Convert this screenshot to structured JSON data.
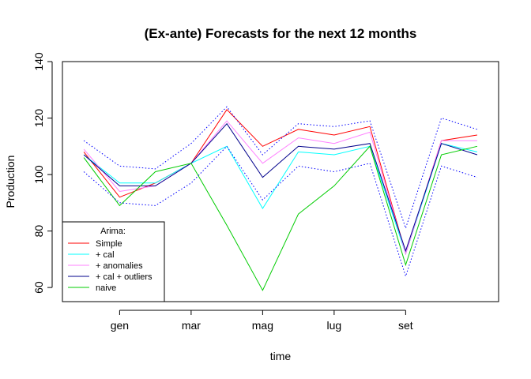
{
  "chart_data": {
    "type": "line",
    "title": "(Ex-ante) Forecasts for the next 12 months",
    "xlabel": "time",
    "ylabel": "Production",
    "ylim": [
      55,
      140
    ],
    "yticks": [
      60,
      80,
      100,
      120,
      140
    ],
    "xticks": [
      {
        "label": "gen",
        "x": 2
      },
      {
        "label": "mar",
        "x": 4
      },
      {
        "label": "mag",
        "x": 6
      },
      {
        "label": "lug",
        "x": 8
      },
      {
        "label": "set",
        "x": 10
      }
    ],
    "x": [
      1,
      2,
      3,
      4,
      5,
      6,
      7,
      8,
      9,
      10,
      11,
      12
    ],
    "grid": false,
    "legend": {
      "title": "Arima:",
      "position": "bottom-left"
    },
    "series": [
      {
        "name": "Simple",
        "color": "#ff0000",
        "style": "solid",
        "values": [
          108,
          92,
          97,
          104,
          123,
          110,
          116,
          114,
          117,
          72,
          112,
          114
        ]
      },
      {
        "name": "+ cal",
        "color": "#00ffff",
        "style": "solid",
        "values": [
          107,
          97,
          97,
          104,
          110,
          88,
          108,
          107,
          110,
          72,
          111,
          108
        ]
      },
      {
        "name": "+ anomalies",
        "color": "#ff80ff",
        "style": "solid",
        "values": [
          109,
          94,
          96,
          104,
          119,
          104,
          113,
          111,
          115,
          72,
          112,
          112
        ]
      },
      {
        "name": "+ cal + outliers",
        "color": "#00008b",
        "style": "solid",
        "values": [
          107,
          96,
          96,
          104,
          118,
          99,
          110,
          109,
          111,
          73,
          111,
          107
        ]
      },
      {
        "name": "naive",
        "color": "#00cc00",
        "style": "solid",
        "values": [
          106,
          89,
          101,
          104,
          82,
          59,
          86,
          96,
          110,
          68,
          107,
          110
        ]
      },
      {
        "color": "#0000ff",
        "style": "dotted",
        "values": [
          112,
          103,
          102,
          111,
          124,
          107,
          118,
          117,
          119,
          81,
          120,
          116
        ]
      },
      {
        "color": "#0000ff",
        "style": "dotted",
        "values": [
          101,
          90,
          89,
          97,
          110,
          91,
          103,
          101,
          104,
          64,
          103,
          99
        ]
      }
    ]
  }
}
